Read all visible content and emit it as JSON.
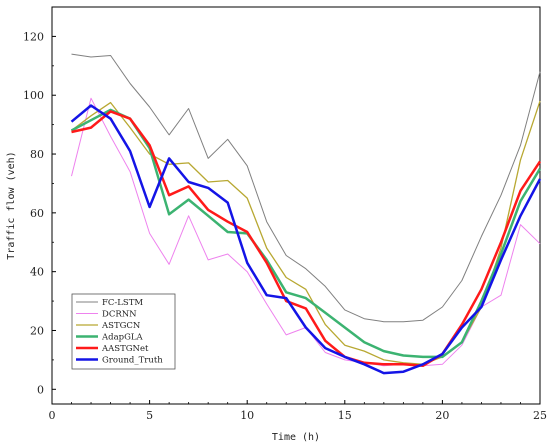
{
  "chart_data": {
    "type": "line",
    "title": "",
    "xlabel": "Time (h)",
    "ylabel": "Traffic flow (veh)",
    "xlim": [
      0,
      25
    ],
    "ylim": [
      -5,
      130
    ],
    "xticks": [
      0,
      5,
      10,
      15,
      20,
      25
    ],
    "yticks": [
      0,
      20,
      40,
      60,
      80,
      100,
      120
    ],
    "grid": false,
    "legend_position": "lower-left",
    "x": [
      1,
      2,
      3,
      4,
      5,
      6,
      7,
      8,
      9,
      10,
      11,
      12,
      13,
      14,
      15,
      16,
      17,
      18,
      19,
      20,
      21,
      22,
      23,
      24,
      25
    ],
    "series": [
      {
        "name": "FC-LSTM",
        "color": "#808080",
        "width": 1,
        "values": [
          114,
          113,
          113.5,
          104,
          96,
          86.5,
          95.5,
          78.5,
          85,
          76,
          57,
          45.5,
          41,
          35,
          27,
          24,
          23,
          23,
          23.5,
          28,
          37,
          52,
          66,
          83,
          108
        ]
      },
      {
        "name": "DCRNN",
        "color": "#ee82ee",
        "width": 1,
        "values": [
          72.5,
          99,
          86,
          74,
          53,
          42.5,
          59,
          44,
          46,
          40,
          29,
          18.5,
          21,
          12.5,
          10,
          9,
          8,
          8.5,
          8,
          8.5,
          15,
          28,
          32,
          56,
          49.5
        ]
      },
      {
        "name": "ASTGCN",
        "color": "#b8a832",
        "width": 1.3,
        "values": [
          88,
          93,
          97.5,
          89,
          80,
          76.5,
          77,
          70.5,
          71,
          65,
          48,
          38,
          34,
          22,
          15,
          13,
          10,
          9,
          8.5,
          11,
          16,
          28,
          48,
          78,
          98
        ]
      },
      {
        "name": "AdapGLA",
        "color": "#3cb371",
        "width": 2.5,
        "values": [
          88,
          91.5,
          95,
          92,
          82,
          59.5,
          64.5,
          59,
          53.5,
          53,
          44,
          33,
          31,
          26,
          21,
          16,
          13,
          11.5,
          11,
          11,
          16,
          30,
          46,
          64,
          75
        ]
      },
      {
        "name": "AASTGNet",
        "color": "#ff1a1a",
        "width": 2.5,
        "values": [
          87.5,
          89,
          94.5,
          92,
          83,
          66,
          69,
          61,
          57,
          53.5,
          43,
          30,
          27.5,
          16.5,
          11,
          9,
          8.5,
          8.5,
          8,
          12,
          22,
          34,
          50,
          67.5,
          77.5
        ]
      },
      {
        "name": "Ground_Truth",
        "color": "#1414e6",
        "width": 2.5,
        "values": [
          91,
          96.5,
          92,
          81,
          62,
          78.5,
          70.5,
          68.5,
          63.5,
          43,
          32,
          31,
          21,
          14,
          11,
          8.5,
          5.5,
          6,
          8.5,
          12,
          21,
          28,
          44,
          59,
          71.5
        ]
      }
    ]
  }
}
